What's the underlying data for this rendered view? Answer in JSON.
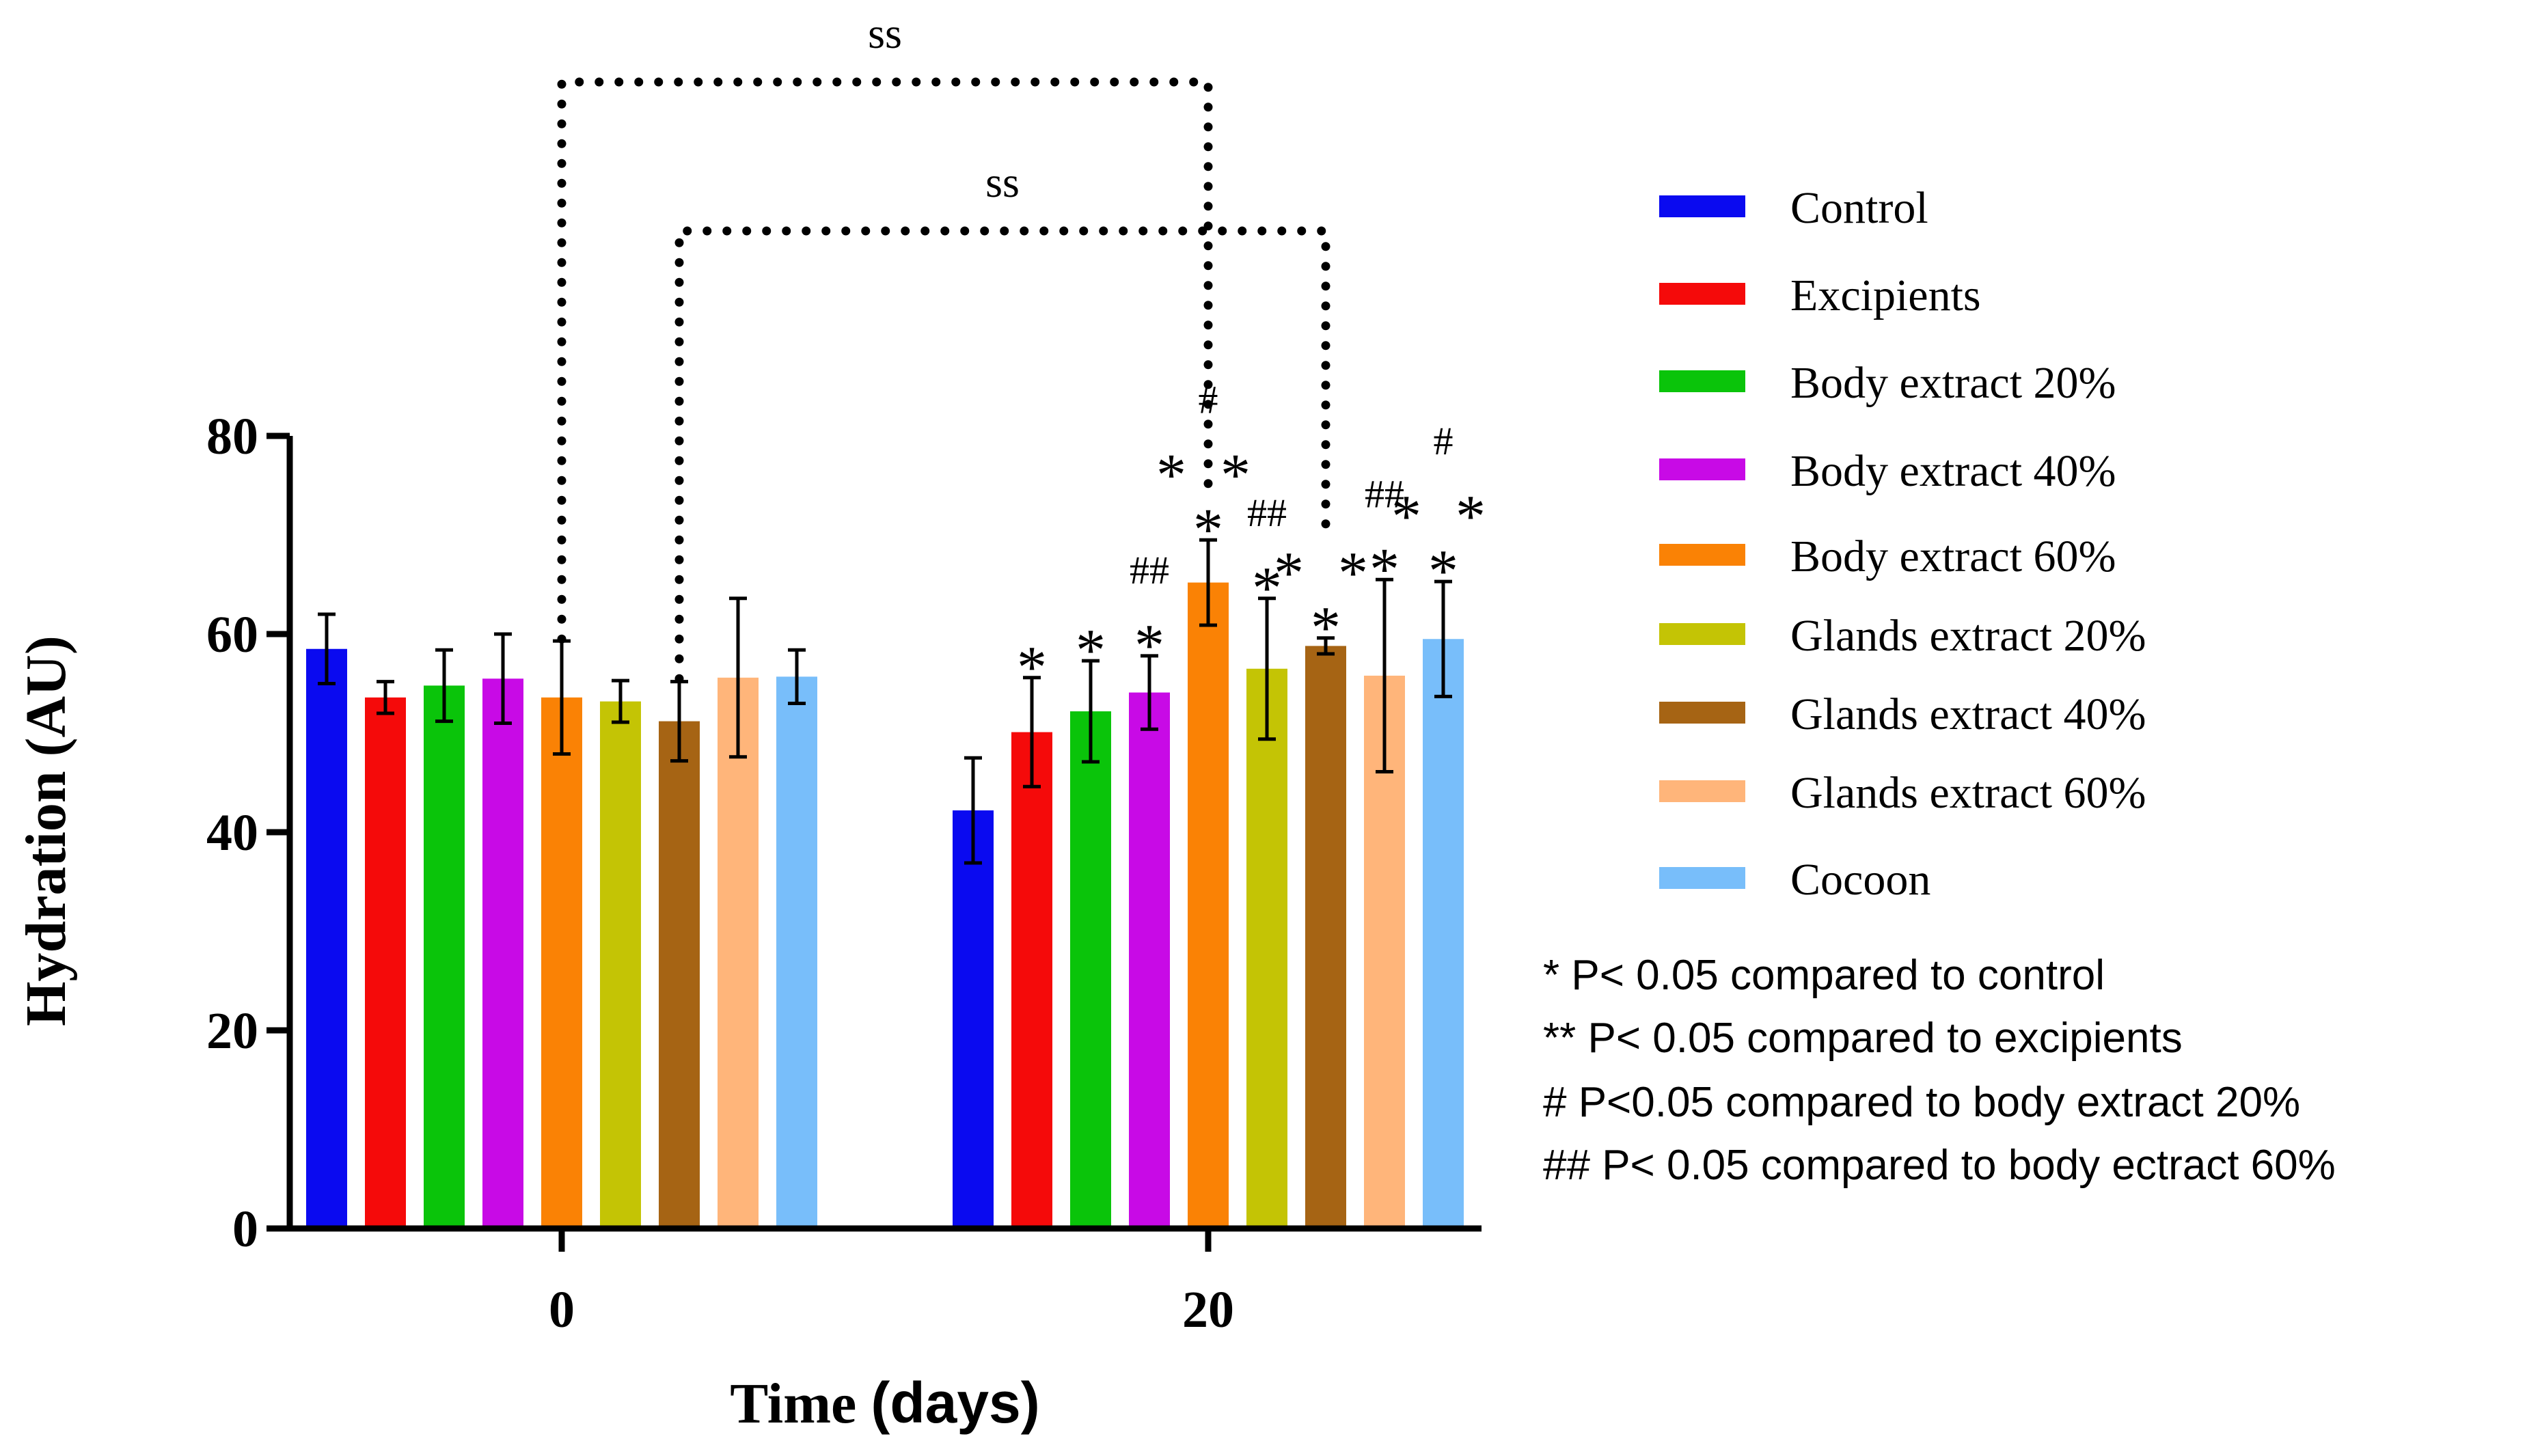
{
  "chart_data": {
    "type": "bar",
    "title": "",
    "xlabel_parts": [
      "Time ",
      "(days)"
    ],
    "ylabel": "Hydration (AU)",
    "categories": [
      "0",
      "20"
    ],
    "ylim": [
      0,
      80
    ],
    "yticks": [
      "0",
      "20",
      "40",
      "60",
      "80"
    ],
    "series": [
      {
        "name": "Control",
        "color": "#0a0af0",
        "values": [
          58.5,
          42.2
        ],
        "errors": [
          3.5,
          5.3
        ]
      },
      {
        "name": "Excipients",
        "color": "#f50a0a",
        "values": [
          53.6,
          50.1
        ],
        "errors": [
          1.6,
          5.5
        ]
      },
      {
        "name": "Body extract 20%",
        "color": "#0ac40a",
        "values": [
          54.8,
          52.2
        ],
        "errors": [
          3.6,
          5.1
        ]
      },
      {
        "name": "Body extract 40%",
        "color": "#c80ae6",
        "values": [
          55.5,
          54.1
        ],
        "errors": [
          4.5,
          3.7
        ]
      },
      {
        "name": "Body extract 60%",
        "color": "#fa8205",
        "values": [
          53.6,
          65.2
        ],
        "errors": [
          5.7,
          4.3
        ]
      },
      {
        "name": "Glands extract 20%",
        "color": "#c4c405",
        "values": [
          53.2,
          56.5
        ],
        "errors": [
          2.1,
          7.1
        ]
      },
      {
        "name": "Glands extract 40%",
        "color": "#a66414",
        "values": [
          51.2,
          58.8
        ],
        "errors": [
          4.0,
          0.8
        ]
      },
      {
        "name": "Glands extract 60%",
        "color": "#ffb57a",
        "values": [
          55.6,
          55.8
        ],
        "errors": [
          8.0,
          9.7
        ]
      },
      {
        "name": "Cocoon",
        "color": "#78befa",
        "values": [
          55.7,
          59.5
        ],
        "errors": [
          2.7,
          5.8
        ]
      }
    ],
    "significance_marks": [
      {
        "series": 1,
        "category": 1,
        "rows": [
          "*"
        ]
      },
      {
        "series": 2,
        "category": 1,
        "rows": [
          "*"
        ]
      },
      {
        "series": 3,
        "category": 1,
        "rows": [
          "##",
          "*"
        ]
      },
      {
        "series": 4,
        "category": 1,
        "rows": [
          "#",
          "* *",
          "*"
        ]
      },
      {
        "series": 5,
        "category": 1,
        "rows": [
          "##",
          "*"
        ]
      },
      {
        "series": 6,
        "category": 1,
        "rows": [
          "* *",
          "*"
        ]
      },
      {
        "series": 7,
        "category": 1,
        "rows": [
          "##",
          "*"
        ]
      },
      {
        "series": 8,
        "category": 1,
        "rows": [
          "#",
          "* *",
          "*"
        ]
      }
    ],
    "brackets": [
      {
        "label": "ss",
        "from_series": 4,
        "from_category": 0,
        "to_series": 4,
        "to_category": 1
      },
      {
        "label": "ss",
        "from_series": 6,
        "from_category": 0,
        "to_series": 6,
        "to_category": 1
      }
    ],
    "legend_position": "right",
    "footnotes": [
      "* P< 0.05 compared to control",
      "** P< 0.05 compared to excipients",
      "# P<0.05 compared to body extract 20%",
      "## P< 0.05 compared to body ectract 60%"
    ]
  }
}
